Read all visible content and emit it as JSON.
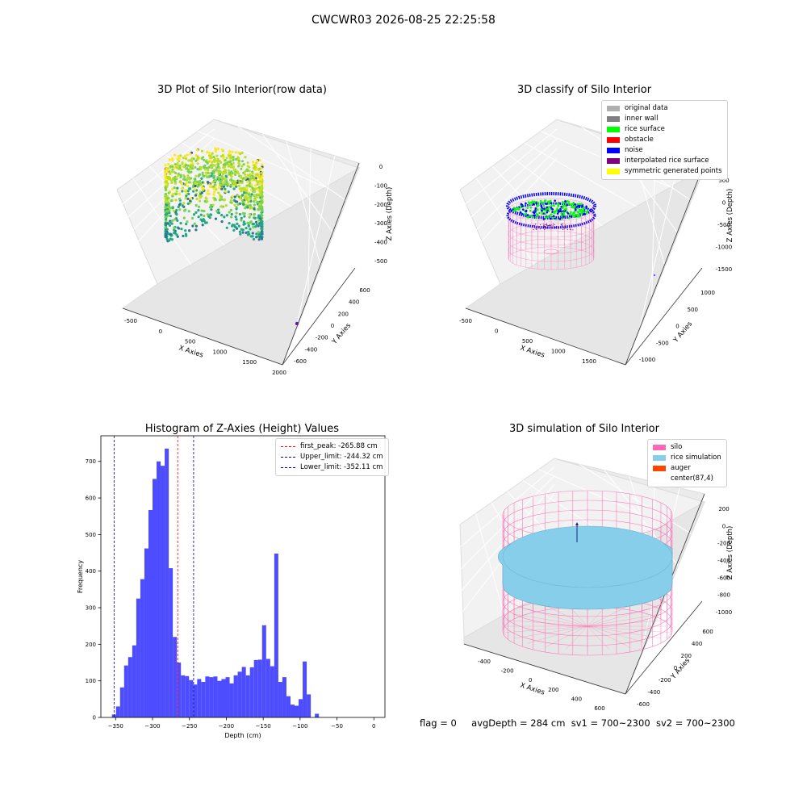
{
  "suptitle": "CWCWR03 2026-08-25 22:25:58",
  "colors": {
    "histogram_bar": "#4d4dff",
    "first_peak_line": "#ff0000",
    "limit_lines": "#0000aa",
    "silo": "#ff69b4",
    "rice_simulation": "#87ceeb",
    "auger": "#ff4500",
    "rice_surface": "#00ff00",
    "noise": "#0000ff"
  },
  "panels": {
    "raw": {
      "title": "3D Plot of Silo Interior(row data)",
      "xlabel": "X Axies",
      "ylabel": "Y Axies",
      "zlabel": "Z Axies (Depth)",
      "x_ticks": [
        "-500",
        "0",
        "500",
        "1000",
        "1500",
        "2000"
      ],
      "y_ticks": [
        "-600",
        "-400",
        "-200",
        "0",
        "200",
        "400",
        "600"
      ],
      "z_ticks": [
        "0",
        "-100",
        "-200",
        "-300",
        "-400",
        "-500"
      ]
    },
    "classify": {
      "title": "3D classify of Silo Interior",
      "xlabel": "X Axies",
      "ylabel": "Y Axies",
      "zlabel": "Z Axies (Depth)",
      "x_ticks": [
        "-500",
        "0",
        "500",
        "1000",
        "1500"
      ],
      "y_ticks": [
        "-1000",
        "-500",
        "0",
        "500",
        "1000"
      ],
      "z_ticks": [
        "500",
        "0",
        "-500",
        "-1000",
        "-1500"
      ],
      "legend": [
        {
          "label": "original data",
          "color": "#b0b0b0"
        },
        {
          "label": "inner wall",
          "color": "#808080"
        },
        {
          "label": "rice surface",
          "color": "#00ff00"
        },
        {
          "label": "obstacle",
          "color": "#ff0000"
        },
        {
          "label": "noise",
          "color": "#0000ff"
        },
        {
          "label": "interpolated rice surface",
          "color": "#800080"
        },
        {
          "label": "symmetric generated points",
          "color": "#ffff00"
        }
      ]
    },
    "simulation": {
      "title": "3D simulation of Silo Interior",
      "xlabel": "X Axies",
      "ylabel": "Y Axies",
      "zlabel": "Z Axies (Depth)",
      "x_ticks": [
        "-400",
        "-200",
        "0",
        "200",
        "400",
        "600"
      ],
      "y_ticks": [
        "-600",
        "-400",
        "-200",
        "0",
        "200",
        "400",
        "600"
      ],
      "z_ticks": [
        "200",
        "0",
        "-200",
        "-400",
        "-600",
        "-800",
        "-1000"
      ],
      "legend": [
        {
          "label": "silo",
          "color": "#ff69b4"
        },
        {
          "label": "rice simulation",
          "color": "#87ceeb"
        },
        {
          "label": "auger",
          "color": "#ff4500"
        },
        {
          "label": "center(87,4)",
          "color": "#ffffff"
        }
      ]
    }
  },
  "status": {
    "flag": "flag = 0",
    "avg_depth": "avgDepth = 284 cm",
    "sv1": "sv1 = 700~2300",
    "sv2": "sv2 = 700~2300"
  },
  "chart_data": {
    "type": "bar",
    "title": "Histogram of Z-Axies (Height) Values",
    "xlabel": "Depth (cm)",
    "ylabel": "Frequency",
    "xlim": [
      -370,
      15
    ],
    "ylim": [
      0,
      770
    ],
    "x_ticks": [
      -350,
      -300,
      -250,
      -200,
      -150,
      -100,
      -50,
      0
    ],
    "y_ticks": [
      0,
      100,
      200,
      300,
      400,
      500,
      600,
      700
    ],
    "bin_width": 5.5,
    "bin_start": -355,
    "values": [
      8,
      30,
      82,
      142,
      165,
      197,
      325,
      378,
      462,
      567,
      652,
      700,
      688,
      735,
      408,
      220,
      150,
      115,
      113,
      102,
      90,
      105,
      97,
      112,
      110,
      112,
      100,
      105,
      110,
      93,
      115,
      125,
      138,
      115,
      137,
      157,
      158,
      252,
      160,
      140,
      448,
      97,
      110,
      58,
      35,
      32,
      50,
      153,
      63,
      0,
      10
    ],
    "vlines": [
      {
        "label": "first_peak: -265.88 cm",
        "value": -265.88,
        "color": "#ff0000"
      },
      {
        "label": "Upper_limit: -244.32 cm",
        "value": -244.32,
        "color": "#0000aa"
      },
      {
        "label": "Lower_limit: -352.11 cm",
        "value": -352.11,
        "color": "#0000aa"
      }
    ],
    "legend_position": "top-right",
    "grid": false
  }
}
